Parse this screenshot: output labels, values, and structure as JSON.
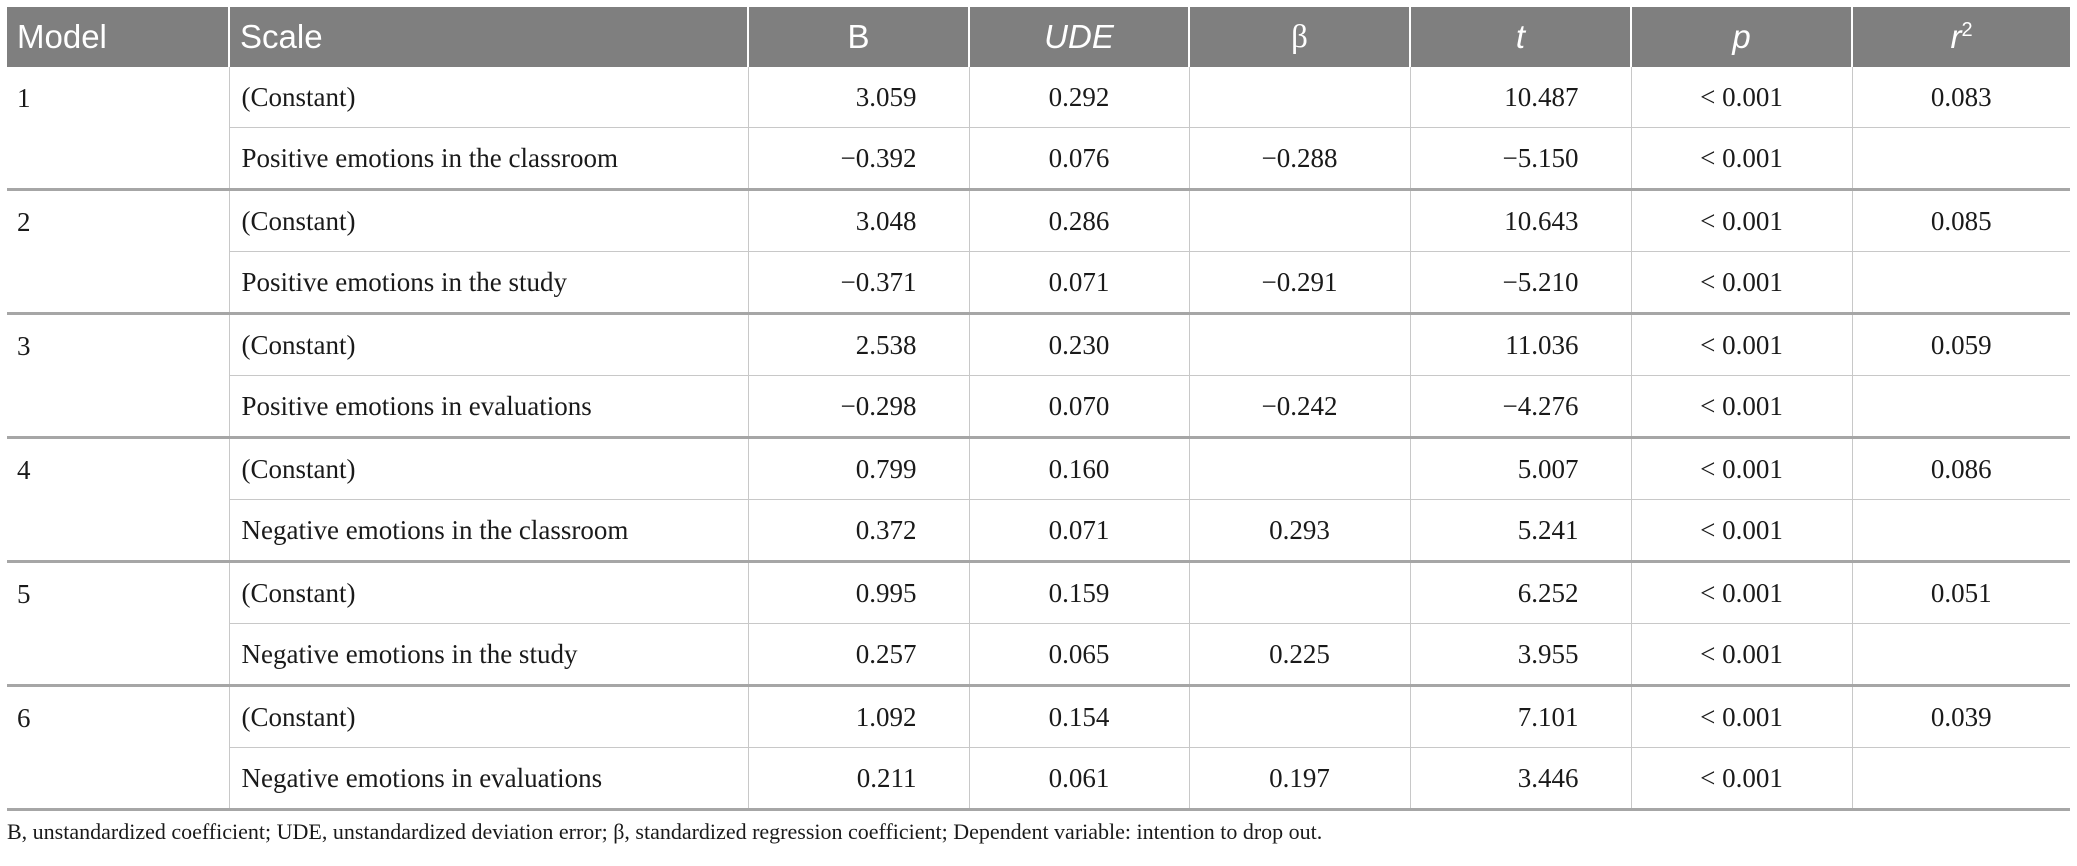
{
  "table": {
    "headers": {
      "model": "Model",
      "scale": "Scale",
      "b": "B",
      "ude": "UDE",
      "beta": "β",
      "t": "t",
      "p": "p",
      "r2_base": "r",
      "r2_sup": "2"
    },
    "groups": [
      {
        "model": "1",
        "rows": [
          {
            "scale": "(Constant)",
            "b": "3.059",
            "ude": "0.292",
            "beta": "",
            "t": "10.487",
            "p": "< 0.001",
            "r2": "0.083"
          },
          {
            "scale": "Positive emotions in the classroom",
            "b": "−0.392",
            "ude": "0.076",
            "beta": "−0.288",
            "t": "−5.150",
            "p": "< 0.001",
            "r2": ""
          }
        ]
      },
      {
        "model": "2",
        "rows": [
          {
            "scale": "(Constant)",
            "b": "3.048",
            "ude": "0.286",
            "beta": "",
            "t": "10.643",
            "p": "< 0.001",
            "r2": "0.085"
          },
          {
            "scale": "Positive emotions in the study",
            "b": "−0.371",
            "ude": "0.071",
            "beta": "−0.291",
            "t": "−5.210",
            "p": "< 0.001",
            "r2": ""
          }
        ]
      },
      {
        "model": "3",
        "rows": [
          {
            "scale": "(Constant)",
            "b": "2.538",
            "ude": "0.230",
            "beta": "",
            "t": "11.036",
            "p": "< 0.001",
            "r2": "0.059"
          },
          {
            "scale": "Positive emotions in evaluations",
            "b": "−0.298",
            "ude": "0.070",
            "beta": "−0.242",
            "t": "−4.276",
            "p": "< 0.001",
            "r2": ""
          }
        ]
      },
      {
        "model": "4",
        "rows": [
          {
            "scale": "(Constant)",
            "b": "0.799",
            "ude": "0.160",
            "beta": "",
            "t": "5.007",
            "p": "< 0.001",
            "r2": "0.086"
          },
          {
            "scale": "Negative emotions in the classroom",
            "b": "0.372",
            "ude": "0.071",
            "beta": "0.293",
            "t": "5.241",
            "p": "< 0.001",
            "r2": ""
          }
        ]
      },
      {
        "model": "5",
        "rows": [
          {
            "scale": "(Constant)",
            "b": "0.995",
            "ude": "0.159",
            "beta": "",
            "t": "6.252",
            "p": "< 0.001",
            "r2": "0.051"
          },
          {
            "scale": "Negative emotions in the study",
            "b": "0.257",
            "ude": "0.065",
            "beta": "0.225",
            "t": "3.955",
            "p": "< 0.001",
            "r2": ""
          }
        ]
      },
      {
        "model": "6",
        "rows": [
          {
            "scale": "(Constant)",
            "b": "1.092",
            "ude": "0.154",
            "beta": "",
            "t": "7.101",
            "p": "< 0.001",
            "r2": "0.039"
          },
          {
            "scale": "Negative emotions in evaluations",
            "b": "0.211",
            "ude": "0.061",
            "beta": "0.197",
            "t": "3.446",
            "p": "< 0.001",
            "r2": ""
          }
        ]
      }
    ]
  },
  "footnote": "B, unstandardized coefficient; UDE, unstandardized deviation error; β, standardized regression coefficient; Dependent variable: intention to drop out.",
  "colors": {
    "header_bg": "#7f7f7f",
    "header_text": "#ffffff",
    "rule": "#a6a6a6",
    "grid": "#c8c8c8"
  }
}
